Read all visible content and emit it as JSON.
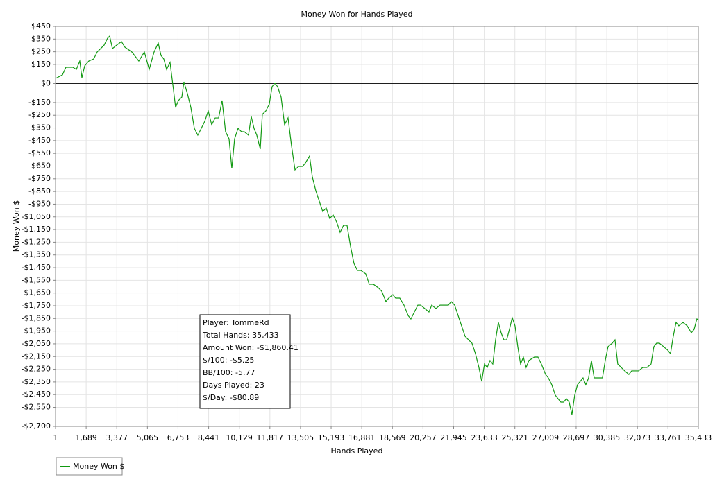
{
  "chart_data": {
    "type": "line",
    "title": "Money Won for Hands Played",
    "xlabel": "Hands Played",
    "ylabel": "Money Won $",
    "grid": true,
    "legend": "bottom-left",
    "xlim": [
      1,
      35433
    ],
    "ylim": [
      -2700,
      450
    ],
    "xticks": [
      1,
      {
        "value": 1689,
        "label": "1,689"
      },
      {
        "value": 3377,
        "label": "3,377"
      },
      {
        "value": 5065,
        "label": "5,065"
      },
      {
        "value": 6753,
        "label": "6,753"
      },
      {
        "value": 8441,
        "label": "8,441"
      },
      {
        "value": 10129,
        "label": "10,129"
      },
      {
        "value": 11817,
        "label": "11,817"
      },
      {
        "value": 13505,
        "label": "13,505"
      },
      {
        "value": 15193,
        "label": "15,193"
      },
      {
        "value": 16881,
        "label": "16,881"
      },
      {
        "value": 18569,
        "label": "18,569"
      },
      {
        "value": 20257,
        "label": "20,257"
      },
      {
        "value": 21945,
        "label": "21,945"
      },
      {
        "value": 23633,
        "label": "23,633"
      },
      {
        "value": 25321,
        "label": "25,321"
      },
      {
        "value": 27009,
        "label": "27,009"
      },
      {
        "value": 28697,
        "label": "28,697"
      },
      {
        "value": 30385,
        "label": "30,385"
      },
      {
        "value": 32073,
        "label": "32,073"
      },
      {
        "value": 33761,
        "label": "33,761"
      },
      {
        "value": 35433,
        "label": "35,433"
      }
    ],
    "yticks": [
      {
        "value": 450,
        "label": "$450"
      },
      {
        "value": 350,
        "label": "$350"
      },
      {
        "value": 250,
        "label": "$250"
      },
      {
        "value": 150,
        "label": "$150"
      },
      {
        "value": 0,
        "label": "$0"
      },
      {
        "value": -150,
        "label": "-$150"
      },
      {
        "value": -250,
        "label": "-$250"
      },
      {
        "value": -350,
        "label": "-$350"
      },
      {
        "value": -450,
        "label": "-$450"
      },
      {
        "value": -550,
        "label": "-$550"
      },
      {
        "value": -650,
        "label": "-$650"
      },
      {
        "value": -750,
        "label": "-$750"
      },
      {
        "value": -850,
        "label": "-$850"
      },
      {
        "value": -950,
        "label": "-$950"
      },
      {
        "value": -1050,
        "label": "-$1,050"
      },
      {
        "value": -1150,
        "label": "-$1,150"
      },
      {
        "value": -1250,
        "label": "-$1,250"
      },
      {
        "value": -1350,
        "label": "-$1,350"
      },
      {
        "value": -1450,
        "label": "-$1,450"
      },
      {
        "value": -1550,
        "label": "-$1,550"
      },
      {
        "value": -1650,
        "label": "-$1,650"
      },
      {
        "value": -1750,
        "label": "-$1,750"
      },
      {
        "value": -1850,
        "label": "-$1,850"
      },
      {
        "value": -1950,
        "label": "-$1,950"
      },
      {
        "value": -2050,
        "label": "-$2,050"
      },
      {
        "value": -2150,
        "label": "-$2,150"
      },
      {
        "value": -2250,
        "label": "-$2,250"
      },
      {
        "value": -2350,
        "label": "-$2,350"
      },
      {
        "value": -2450,
        "label": "-$2,450"
      },
      {
        "value": -2550,
        "label": "-$2,550"
      },
      {
        "value": -2700,
        "label": "-$2,700"
      }
    ],
    "x": [
      1,
      383,
      574,
      957,
      1148,
      1339,
      1454,
      1607,
      1836,
      2104,
      2296,
      2487,
      2678,
      2870,
      2984,
      3137,
      3367,
      3635,
      3826,
      4209,
      4591,
      4897,
      5165,
      5433,
      5662,
      5815,
      5969,
      6122,
      6313,
      6504,
      6619,
      6772,
      6963,
      7078,
      7270,
      7461,
      7652,
      7843,
      8035,
      8226,
      8417,
      8609,
      8800,
      8991,
      9182,
      9374,
      9565,
      9718,
      9871,
      10062,
      10254,
      10407,
      10636,
      10789,
      10942,
      11095,
      11287,
      11401,
      11593,
      11784,
      11937,
      12090,
      12243,
      12435,
      12626,
      12817,
      13008,
      13200,
      13391,
      13621,
      13774,
      14003,
      14156,
      14348,
      14539,
      14730,
      14921,
      15113,
      15304,
      15495,
      15687,
      15878,
      16069,
      16261,
      16452,
      16643,
      16834,
      17102,
      17294,
      17523,
      17791,
      17982,
      18212,
      18365,
      18594,
      18747,
      18977,
      19207,
      19436,
      19589,
      19780,
      19972,
      20125,
      20354,
      20584,
      20737,
      20966,
      21196,
      21655,
      21808,
      22000,
      22191,
      22382,
      22573,
      22765,
      22956,
      23147,
      23339,
      23492,
      23645,
      23798,
      23951,
      24104,
      24257,
      24410,
      24563,
      24716,
      24869,
      25022,
      25175,
      25328,
      25481,
      25634,
      25787,
      25940,
      26093,
      26399,
      26591,
      26782,
      27012,
      27165,
      27356,
      27547,
      27700,
      27853,
      28006,
      28159,
      28312,
      28465,
      28618,
      28771,
      28924,
      29078,
      29231,
      29384,
      29537,
      29690,
      29919,
      30149,
      30302,
      30455,
      30685,
      30838,
      30991,
      31182,
      31373,
      31603,
      31756,
      31985,
      32138,
      32368,
      32598,
      32827,
      32980,
      33133,
      33286,
      33516,
      33745,
      33898,
      34051,
      34204,
      34357,
      34587,
      34817,
      35046,
      35199,
      35352,
      35433
    ],
    "series": [
      {
        "name": "Money Won $",
        "color": "#119911",
        "values": [
          40,
          68,
          128,
          128,
          111,
          177,
          46,
          139,
          177,
          193,
          248,
          275,
          302,
          357,
          373,
          275,
          302,
          330,
          286,
          248,
          177,
          248,
          111,
          248,
          319,
          221,
          193,
          111,
          166,
          -52,
          -189,
          -134,
          -107,
          13,
          -80,
          -189,
          -353,
          -407,
          -353,
          -298,
          -216,
          -325,
          -271,
          -271,
          -134,
          -380,
          -435,
          -669,
          -435,
          -353,
          -380,
          -380,
          -407,
          -260,
          -353,
          -407,
          -516,
          -243,
          -216,
          -162,
          -25,
          2,
          -25,
          -107,
          -325,
          -271,
          -489,
          -680,
          -653,
          -653,
          -626,
          -571,
          -735,
          -844,
          -926,
          -1008,
          -980,
          -1062,
          -1035,
          -1090,
          -1172,
          -1117,
          -1117,
          -1281,
          -1417,
          -1472,
          -1472,
          -1499,
          -1581,
          -1581,
          -1608,
          -1636,
          -1717,
          -1690,
          -1663,
          -1690,
          -1690,
          -1745,
          -1827,
          -1854,
          -1799,
          -1745,
          -1745,
          -1772,
          -1799,
          -1745,
          -1772,
          -1745,
          -1745,
          -1717,
          -1745,
          -1827,
          -1908,
          -1990,
          -2018,
          -2045,
          -2127,
          -2236,
          -2345,
          -2209,
          -2236,
          -2181,
          -2209,
          -2018,
          -1881,
          -1963,
          -2018,
          -2018,
          -1936,
          -1843,
          -1908,
          -2072,
          -2209,
          -2154,
          -2236,
          -2181,
          -2154,
          -2154,
          -2209,
          -2291,
          -2318,
          -2372,
          -2454,
          -2482,
          -2509,
          -2509,
          -2482,
          -2509,
          -2607,
          -2454,
          -2372,
          -2345,
          -2318,
          -2372,
          -2318,
          -2181,
          -2318,
          -2318,
          -2318,
          -2181,
          -2072,
          -2045,
          -2018,
          -2209,
          -2236,
          -2263,
          -2291,
          -2263,
          -2263,
          -2263,
          -2236,
          -2236,
          -2209,
          -2072,
          -2045,
          -2045,
          -2072,
          -2100,
          -2127,
          -1990,
          -1881,
          -1908,
          -1881,
          -1908,
          -1963,
          -1936,
          -1854,
          -1860.41
        ]
      }
    ],
    "stats": [
      "Player: TommeRd",
      "Total Hands: 35,433",
      "Amount Won: -$1,860.41",
      "$/100: -$5.25",
      "BB/100: -5.77",
      "Days Played: 23",
      "$/Day: -$80.89"
    ]
  }
}
